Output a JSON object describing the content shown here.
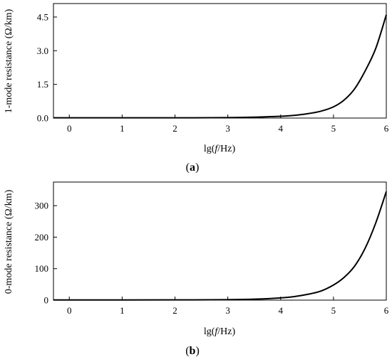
{
  "chart_data": [
    {
      "type": "line",
      "panel_label": "a",
      "xlabel_prefix": "lg(",
      "xlabel_var": "f",
      "xlabel_suffix": "/Hz)",
      "ylabel": "1-mode resistance (Ω/km)",
      "xlim": [
        -0.3,
        6
      ],
      "ylim": [
        0,
        5.1
      ],
      "xticks": [
        0,
        1,
        2,
        3,
        4,
        5,
        6
      ],
      "xtick_labels": [
        "0",
        "1",
        "2",
        "3",
        "4",
        "5",
        "6"
      ],
      "yticks": [
        0,
        1.5,
        3,
        4.5
      ],
      "ytick_labels": [
        "0.0",
        "1.5",
        "3.0",
        "4.5"
      ],
      "grid": false,
      "series": [
        {
          "x": [
            -0.3,
            0,
            1,
            2,
            3,
            3.5,
            4,
            4.25,
            4.5,
            4.75,
            5,
            5.2,
            5.4,
            5.6,
            5.8,
            6
          ],
          "y": [
            0.01,
            0.01,
            0.01,
            0.01,
            0.02,
            0.04,
            0.08,
            0.12,
            0.19,
            0.3,
            0.5,
            0.8,
            1.3,
            2.1,
            3.1,
            4.6
          ]
        }
      ]
    },
    {
      "type": "line",
      "panel_label": "b",
      "xlabel_prefix": "lg(",
      "xlabel_var": "f",
      "xlabel_suffix": "/Hz)",
      "ylabel": "0-mode resistance (Ω/km)",
      "xlim": [
        -0.3,
        6
      ],
      "ylim": [
        0,
        375
      ],
      "xticks": [
        0,
        1,
        2,
        3,
        4,
        5,
        6
      ],
      "xtick_labels": [
        "0",
        "1",
        "2",
        "3",
        "4",
        "5",
        "6"
      ],
      "yticks": [
        0,
        100,
        200,
        300
      ],
      "ytick_labels": [
        "0",
        "100",
        "200",
        "300"
      ],
      "grid": false,
      "series": [
        {
          "x": [
            -0.3,
            0,
            1,
            2,
            3,
            3.5,
            4,
            4.25,
            4.5,
            4.75,
            5,
            5.2,
            5.4,
            5.6,
            5.8,
            6
          ],
          "y": [
            0.5,
            0.5,
            0.6,
            0.8,
            1.5,
            3,
            7,
            11,
            18,
            28,
            48,
            72,
            108,
            165,
            245,
            345
          ]
        }
      ]
    }
  ]
}
